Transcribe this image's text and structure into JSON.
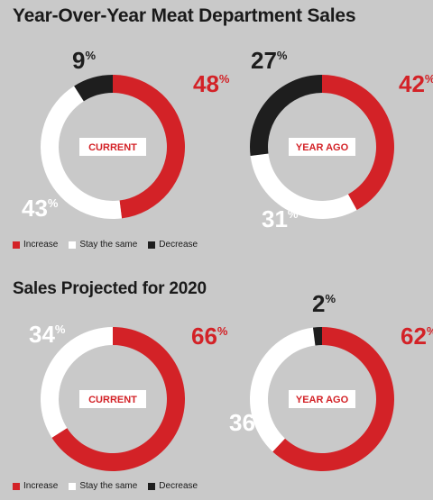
{
  "colors": {
    "increase": "#d32227",
    "same": "#ffffff",
    "decrease": "#1e1e1e",
    "background": "#c9c9c9"
  },
  "legend_labels": [
    "Increase",
    "Stay the same",
    "Decrease"
  ],
  "chart_data": [
    {
      "type": "pie",
      "title": "Year-Over-Year Meat Department Sales",
      "center_label": "CURRENT",
      "categories": [
        "Increase",
        "Stay the same",
        "Decrease"
      ],
      "values": [
        48,
        43,
        9
      ],
      "value_labels": [
        "48",
        "43",
        "9"
      ]
    },
    {
      "type": "pie",
      "title": "",
      "center_label": "YEAR AGO",
      "categories": [
        "Increase",
        "Stay the same",
        "Decrease"
      ],
      "values": [
        42,
        31,
        27
      ],
      "value_labels": [
        "42",
        "31",
        "27"
      ]
    },
    {
      "type": "pie",
      "title": "Sales Projected for 2020",
      "center_label": "CURRENT",
      "categories": [
        "Increase",
        "Stay the same",
        "Decrease"
      ],
      "values": [
        66,
        34,
        0
      ],
      "value_labels": [
        "66",
        "34",
        ""
      ]
    },
    {
      "type": "pie",
      "title": "",
      "center_label": "YEAR AGO",
      "categories": [
        "Increase",
        "Stay the same",
        "Decrease"
      ],
      "values": [
        62,
        36,
        2
      ],
      "value_labels": [
        "62",
        "36",
        "2"
      ]
    }
  ],
  "percent_sign": "%"
}
